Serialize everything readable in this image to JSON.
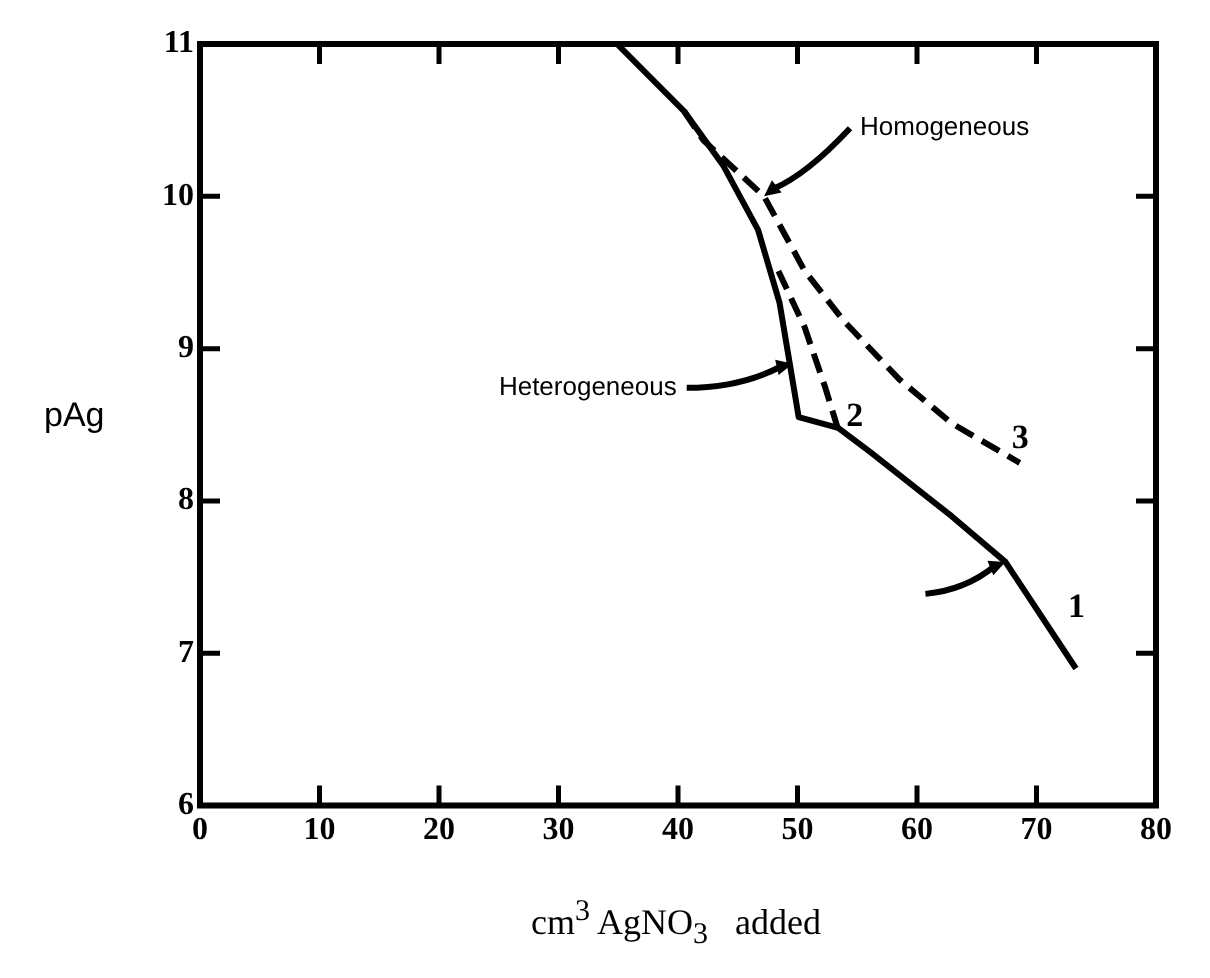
{
  "chart_data": {
    "type": "line",
    "xlabel": "cm$^{3}$ AgNO$_{3}$   added",
    "ylabel": "pAg",
    "xlim": [
      0,
      80
    ],
    "xticks": [
      0,
      10,
      20,
      30,
      40,
      50,
      60,
      70,
      80
    ],
    "ylim": [
      6,
      11
    ],
    "yticks": [
      6,
      7,
      8,
      9,
      10,
      11
    ],
    "grid": false,
    "legend": false,
    "marker": "none",
    "series": [
      {
        "color": "#000000",
        "line_style": "solid",
        "x": [
          34.9,
          40.5,
          43.8,
          46.7,
          48.5,
          49.4,
          50.1,
          53.4,
          56.1,
          62.9,
          67.4,
          73.3
        ],
        "values": [
          11,
          10.56,
          10.2,
          9.78,
          9.3,
          8.88,
          8.55,
          8.48,
          8.32,
          7.9,
          7.6,
          6.9
        ]
      },
      {
        "color": "#000000",
        "line_style": "dashed",
        "x": [
          48.4,
          50.6,
          52.3,
          53.4
        ],
        "values": [
          9.51,
          9.14,
          8.75,
          8.47
        ]
      },
      {
        "color": "#000000",
        "line_style": "dashed",
        "x": [
          40.5,
          42.1,
          47.2,
          50.6,
          53.9,
          58.5,
          62.9,
          68.6
        ],
        "values": [
          10.56,
          10.37,
          10.0,
          9.51,
          9.18,
          8.8,
          8.51,
          8.25
        ]
      }
    ],
    "annotations": [
      {
        "text": "Homogeneous",
        "x": 47.2,
        "y": 10.0
      },
      {
        "text": "Heterogeneous",
        "x": 49.6,
        "y": 8.9
      },
      {
        "text": "1",
        "x": 73.3,
        "y": 6.9
      },
      {
        "text": "2",
        "x": 53.4,
        "y": 8.47
      },
      {
        "text": "3",
        "x": 68.6,
        "y": 8.25
      }
    ]
  }
}
